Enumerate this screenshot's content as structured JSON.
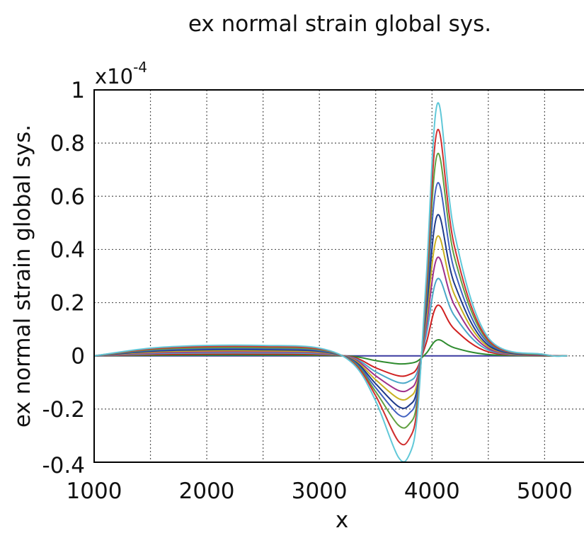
{
  "chart_data": {
    "type": "line",
    "title": "ex normal strain global sys.",
    "xlabel": "x",
    "ylabel": "ex normal strain global sys.",
    "y_exponent_base": "x10",
    "y_exponent_power": "-4",
    "xlim": [
      1000,
      5400
    ],
    "ylim": [
      -0.4,
      1.0
    ],
    "x_ticks": [
      1000,
      2000,
      3000,
      4000,
      5000
    ],
    "x_tick_labels": [
      "1000",
      "2000",
      "3000",
      "4000",
      "5000"
    ],
    "y_ticks": [
      -0.4,
      -0.2,
      0,
      0.2,
      0.4,
      0.6,
      0.8,
      1.0
    ],
    "y_tick_labels": [
      "-0.4",
      "-0.2",
      "0",
      "0.2",
      "0.4",
      "0.6",
      "0.8",
      "1"
    ],
    "grid": true,
    "legend": "none",
    "series": [
      {
        "color": "#3a3aa0",
        "x": [
          1000,
          5200
        ],
        "y": [
          0,
          0
        ]
      },
      {
        "color": "#2e8b2e",
        "x": [
          1000,
          1500,
          2000,
          2500,
          3000,
          3300,
          3500,
          3700,
          3800,
          3870,
          3950,
          4050,
          4200,
          4500,
          5000,
          5200
        ],
        "y": [
          0,
          0.002,
          0.003,
          0.003,
          0.002,
          -0.002,
          -0.018,
          -0.03,
          -0.028,
          -0.02,
          0.01,
          0.06,
          0.03,
          0.005,
          0.0,
          0.0
        ]
      },
      {
        "color": "#d02020",
        "x": [
          1000,
          1500,
          2000,
          2500,
          3000,
          3300,
          3500,
          3700,
          3800,
          3870,
          3950,
          4050,
          4200,
          4500,
          5000,
          5200
        ],
        "y": [
          0,
          0.005,
          0.007,
          0.007,
          0.005,
          -0.005,
          -0.045,
          -0.075,
          -0.07,
          -0.045,
          0.05,
          0.19,
          0.1,
          0.015,
          0.001,
          0.0
        ]
      },
      {
        "color": "#4aa8c8",
        "x": [
          1000,
          1500,
          2000,
          2500,
          3000,
          3300,
          3500,
          3700,
          3800,
          3870,
          3950,
          4050,
          4200,
          4500,
          5000,
          5200
        ],
        "y": [
          0,
          0.008,
          0.011,
          0.011,
          0.008,
          -0.008,
          -0.06,
          -0.1,
          -0.095,
          -0.06,
          0.08,
          0.29,
          0.15,
          0.022,
          0.002,
          0.0
        ]
      },
      {
        "color": "#a0308a",
        "x": [
          1000,
          1500,
          2000,
          2500,
          3000,
          3300,
          3500,
          3700,
          3800,
          3870,
          3950,
          4050,
          4200,
          4500,
          5000,
          5200
        ],
        "y": [
          0,
          0.011,
          0.015,
          0.015,
          0.011,
          -0.011,
          -0.075,
          -0.13,
          -0.125,
          -0.08,
          0.11,
          0.37,
          0.19,
          0.028,
          0.002,
          0.0
        ]
      },
      {
        "color": "#c8b020",
        "x": [
          1000,
          1500,
          2000,
          2500,
          3000,
          3300,
          3500,
          3700,
          3800,
          3870,
          3950,
          4050,
          4200,
          4500,
          5000,
          5200
        ],
        "y": [
          0,
          0.014,
          0.019,
          0.019,
          0.014,
          -0.014,
          -0.09,
          -0.16,
          -0.155,
          -0.1,
          0.14,
          0.45,
          0.23,
          0.034,
          0.003,
          0.0
        ]
      },
      {
        "color": "#1e3a8a",
        "x": [
          1000,
          1500,
          2000,
          2500,
          3000,
          3300,
          3500,
          3700,
          3800,
          3870,
          3950,
          4050,
          4200,
          4500,
          5000,
          5200
        ],
        "y": [
          0,
          0.017,
          0.023,
          0.023,
          0.017,
          -0.017,
          -0.105,
          -0.19,
          -0.185,
          -0.12,
          0.17,
          0.53,
          0.27,
          0.04,
          0.003,
          0.0
        ]
      },
      {
        "color": "#4060c0",
        "x": [
          1000,
          1500,
          2000,
          2500,
          3000,
          3300,
          3500,
          3700,
          3800,
          3870,
          3950,
          4050,
          4200,
          4500,
          5000,
          5200
        ],
        "y": [
          0,
          0.02,
          0.027,
          0.027,
          0.02,
          -0.02,
          -0.12,
          -0.22,
          -0.215,
          -0.14,
          0.2,
          0.65,
          0.32,
          0.048,
          0.004,
          0.0
        ]
      },
      {
        "color": "#60a040",
        "x": [
          1000,
          1500,
          2000,
          2500,
          3000,
          3300,
          3500,
          3700,
          3800,
          3870,
          3950,
          4050,
          4200,
          4500,
          5000,
          5200
        ],
        "y": [
          0,
          0.023,
          0.031,
          0.031,
          0.023,
          -0.023,
          -0.135,
          -0.26,
          -0.255,
          -0.165,
          0.23,
          0.76,
          0.37,
          0.055,
          0.004,
          0.0
        ]
      },
      {
        "color": "#d03030",
        "x": [
          1000,
          1500,
          2000,
          2500,
          3000,
          3300,
          3500,
          3700,
          3800,
          3870,
          3950,
          4050,
          4200,
          4500,
          5000,
          5200
        ],
        "y": [
          0,
          0.026,
          0.035,
          0.035,
          0.026,
          -0.026,
          -0.15,
          -0.32,
          -0.31,
          -0.19,
          0.26,
          0.85,
          0.41,
          0.06,
          0.005,
          0.0
        ]
      },
      {
        "color": "#60c8d8",
        "x": [
          1000,
          1500,
          2000,
          2500,
          3000,
          3300,
          3500,
          3700,
          3800,
          3870,
          3950,
          4050,
          4200,
          4500,
          5000,
          5200
        ],
        "y": [
          0,
          0.029,
          0.039,
          0.039,
          0.029,
          -0.03,
          -0.17,
          -0.38,
          -0.37,
          -0.22,
          0.3,
          0.95,
          0.46,
          0.068,
          0.005,
          0.0
        ]
      }
    ]
  }
}
